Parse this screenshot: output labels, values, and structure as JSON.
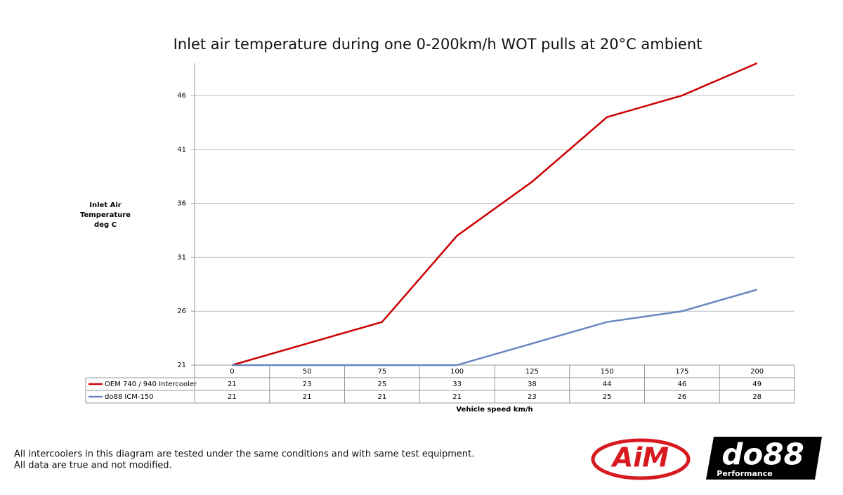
{
  "chart_data": {
    "type": "line",
    "title": "Inlet air temperature during one 0-200km/h WOT pulls at 20°C ambient",
    "ylabel": [
      "Inlet Air",
      "Temperature",
      "deg C"
    ],
    "xlabel": "Vehicle speed km/h",
    "categories": [
      "0",
      "50",
      "75",
      "100",
      "125",
      "150",
      "175",
      "200"
    ],
    "series": [
      {
        "name": "OEM 740 / 940 Intercooler",
        "color": "#cc0000",
        "values": [
          21,
          23,
          25,
          33,
          38,
          44,
          46,
          49
        ]
      },
      {
        "name": "do88 ICM-150",
        "color": "#6a87c0",
        "values": [
          21,
          21,
          21,
          21,
          23,
          25,
          26,
          28
        ]
      }
    ],
    "ylim": [
      21,
      49
    ],
    "yticks": [
      21,
      26,
      31,
      36,
      41,
      46
    ],
    "grid": true
  },
  "footnote": [
    "All intercoolers in this diagram are tested under the same conditions and with same test equipment.",
    "All data are true and not modified."
  ],
  "logos": {
    "aim": "AiM",
    "do88": "do88",
    "do88_sub": "Performance"
  }
}
